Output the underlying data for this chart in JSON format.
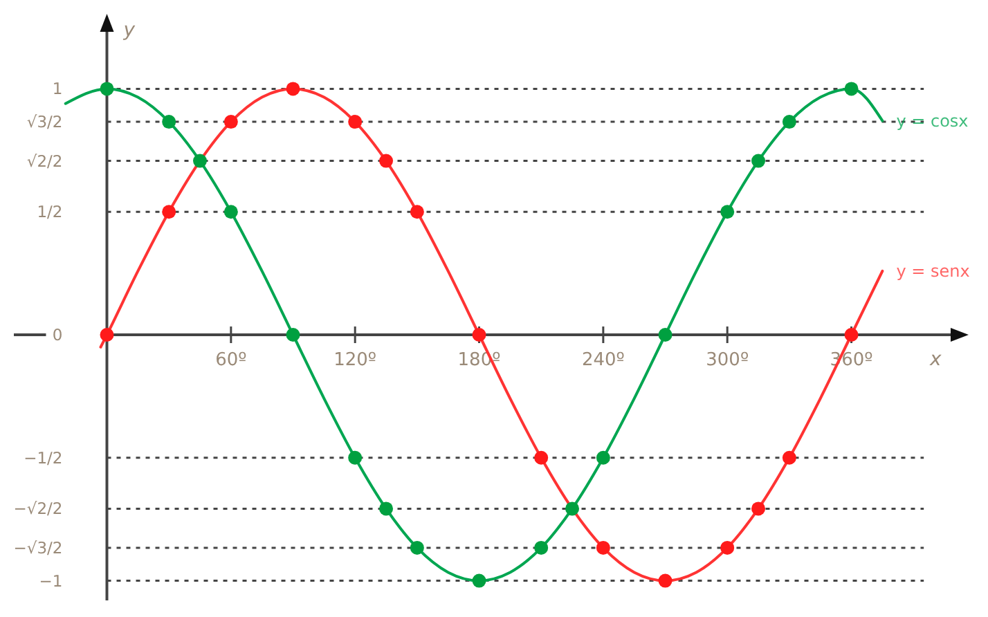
{
  "chart_data": {
    "type": "line",
    "xlabel": "x",
    "ylabel": "y",
    "xlim": [
      -45,
      410
    ],
    "ylim": [
      -1.08,
      1.26
    ],
    "xticks": [
      {
        "value": 60,
        "label": "60º"
      },
      {
        "value": 120,
        "label": "120º"
      },
      {
        "value": 180,
        "label": "180º"
      },
      {
        "value": 240,
        "label": "240º"
      },
      {
        "value": 300,
        "label": "300º"
      },
      {
        "value": 360,
        "label": "360º"
      }
    ],
    "yticks": [
      {
        "value": -1,
        "label": "−1"
      },
      {
        "value": -0.866,
        "label": "−√3/2"
      },
      {
        "value": -0.707,
        "label": "−√2/2"
      },
      {
        "value": -0.5,
        "label": "−1/2"
      },
      {
        "value": 0,
        "label": "0"
      },
      {
        "value": 0.5,
        "label": "1/2"
      },
      {
        "value": 0.707,
        "label": "√2/2"
      },
      {
        "value": 0.866,
        "label": "√3/2"
      },
      {
        "value": 1,
        "label": "1"
      }
    ],
    "grid": "y",
    "line_style": "solid",
    "series": [
      {
        "type": "line",
        "name": "y = senx",
        "color": "#ff3333",
        "marker": "none",
        "x": [
          -3,
          0,
          15,
          30,
          45,
          60,
          75,
          90,
          105,
          120,
          135,
          150,
          165,
          180,
          195,
          210,
          225,
          240,
          255,
          270,
          285,
          300,
          315,
          330,
          345,
          360,
          375
        ],
        "values": [
          -0.05,
          0,
          0.259,
          0.5,
          0.707,
          0.866,
          0.966,
          1,
          0.966,
          0.866,
          0.707,
          0.5,
          0.259,
          0,
          -0.259,
          -0.5,
          -0.707,
          -0.866,
          -0.966,
          -1,
          -0.966,
          -0.866,
          -0.707,
          -0.5,
          -0.259,
          0,
          0.259
        ]
      },
      {
        "type": "line",
        "name": "y = cosx",
        "color": "#00a651",
        "marker": "none",
        "x": [
          -20,
          0,
          15,
          30,
          45,
          60,
          75,
          90,
          105,
          120,
          135,
          150,
          165,
          180,
          195,
          210,
          225,
          240,
          255,
          270,
          285,
          300,
          315,
          330,
          345,
          360,
          375
        ],
        "values": [
          0.94,
          1,
          0.966,
          0.866,
          0.707,
          0.5,
          0.259,
          0,
          -0.259,
          -0.5,
          -0.707,
          -0.866,
          -0.966,
          -1,
          -0.966,
          -0.866,
          -0.707,
          -0.5,
          -0.259,
          0,
          0.259,
          0.5,
          0.707,
          0.866,
          0.966,
          1,
          0.87
        ]
      },
      {
        "type": "scatter",
        "color": "#ff1a1a",
        "marker": "circle",
        "x": [
          0,
          30,
          60,
          90,
          120,
          135,
          150,
          180,
          210,
          240,
          270,
          300,
          315,
          330,
          360
        ],
        "values": [
          0,
          0.5,
          0.866,
          1,
          0.866,
          0.707,
          0.5,
          0,
          -0.5,
          -0.866,
          -1,
          -0.866,
          -0.707,
          -0.5,
          0
        ]
      },
      {
        "type": "scatter",
        "color": "#00a040",
        "marker": "circle",
        "x": [
          0,
          30,
          45,
          60,
          90,
          120,
          135,
          150,
          180,
          210,
          225,
          240,
          270,
          300,
          315,
          330,
          360
        ],
        "values": [
          1,
          0.866,
          0.707,
          0.5,
          0,
          -0.5,
          -0.707,
          -0.866,
          -1,
          -0.866,
          -0.707,
          -0.5,
          0,
          0.5,
          0.707,
          0.866,
          1
        ]
      }
    ]
  }
}
